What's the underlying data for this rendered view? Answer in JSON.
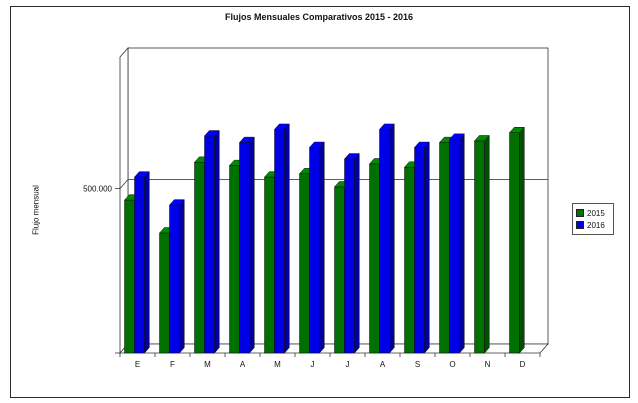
{
  "chart_data": {
    "type": "bar",
    "title": "Flujos Mensuales Comparativos 2015 - 2016",
    "xlabel": "",
    "ylabel": "Flujo mensual",
    "categories": [
      "E",
      "F",
      "M",
      "A",
      "M",
      "J",
      "J",
      "A",
      "S",
      "O",
      "N",
      "D"
    ],
    "series": [
      {
        "name": "2015",
        "color": "#007000",
        "values": [
          465000,
          365000,
          580000,
          570000,
          535000,
          545000,
          505000,
          575000,
          565000,
          640000,
          645000,
          670000
        ]
      },
      {
        "name": "2016",
        "color": "#0000e6",
        "values": [
          535000,
          450000,
          660000,
          640000,
          680000,
          625000,
          590000,
          680000,
          625000,
          650000,
          null,
          null
        ]
      }
    ],
    "ytick_labels": [
      "500.000"
    ],
    "ytick_values": [
      500000
    ],
    "ylim": [
      0,
      900000
    ],
    "legend_position": "right",
    "grid": false,
    "style": "3d"
  }
}
